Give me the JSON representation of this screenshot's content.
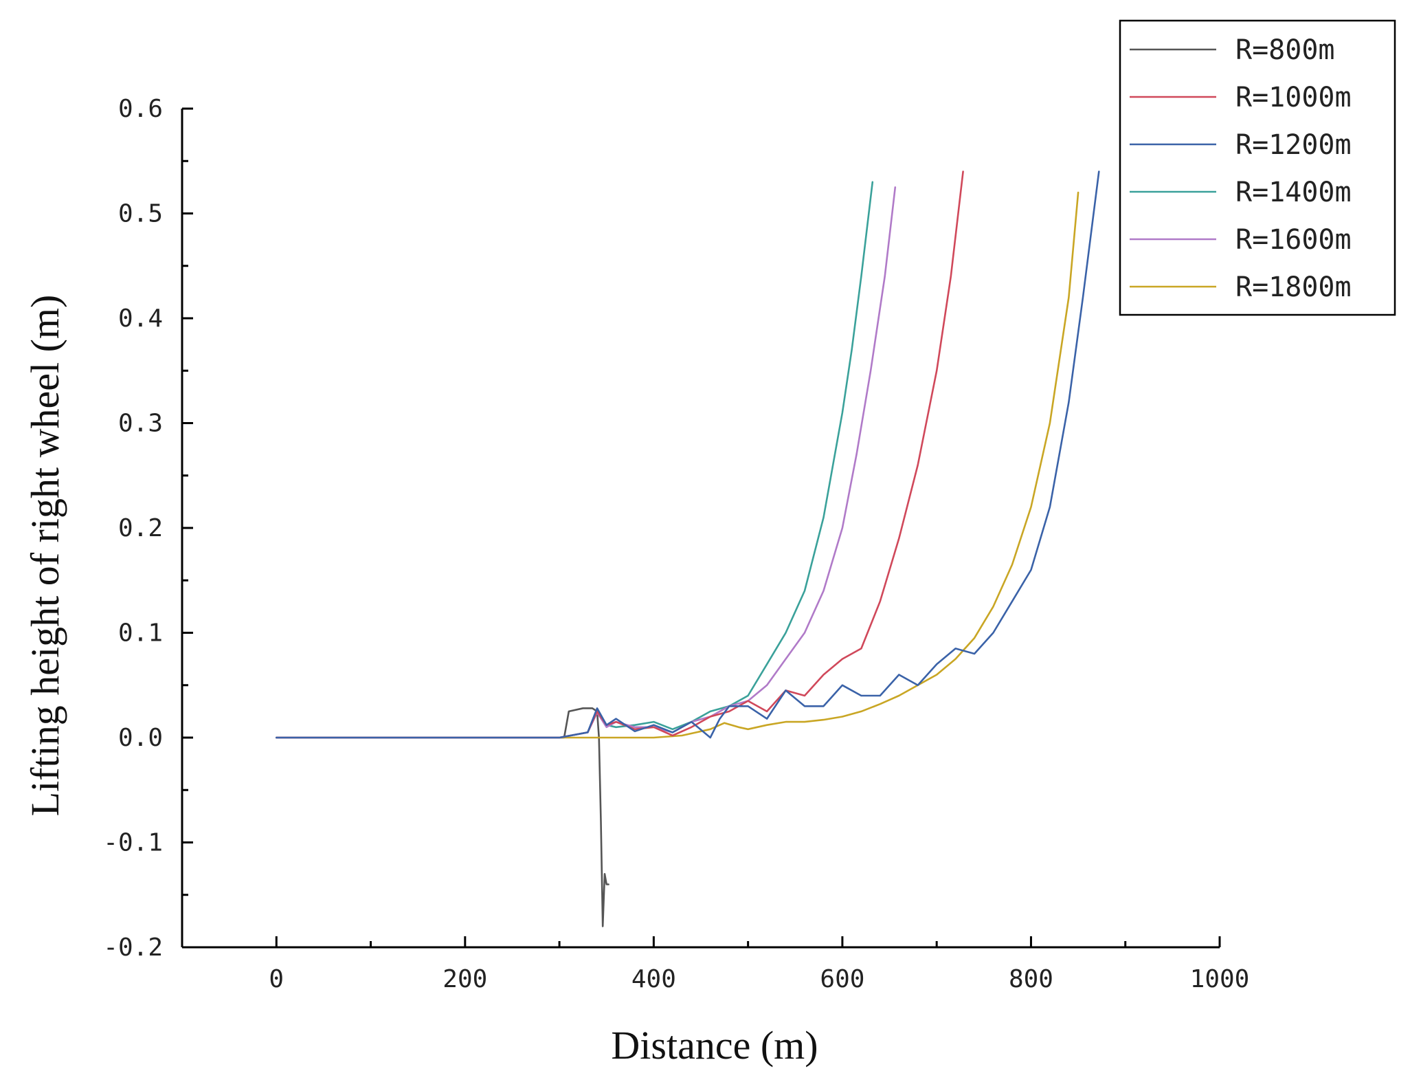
{
  "chart_data": {
    "type": "line",
    "xlabel": "Distance (m)",
    "ylabel": "Lifting height of right wheel (m)",
    "xlim": [
      -100,
      1000
    ],
    "ylim": [
      -0.2,
      0.6
    ],
    "xticks": [
      0,
      200,
      400,
      600,
      800,
      1000
    ],
    "xtick_labels": [
      "0",
      "200",
      "400",
      "600",
      "800",
      "1000"
    ],
    "yticks": [
      -0.2,
      -0.1,
      0.0,
      0.1,
      0.2,
      0.3,
      0.4,
      0.5,
      0.6
    ],
    "ytick_labels": [
      "-0.2",
      "-0.1",
      "0.0",
      "0.1",
      "0.2",
      "0.3",
      "0.4",
      "0.5",
      "0.6"
    ],
    "grid": false,
    "legend_position": "top-right",
    "series": [
      {
        "name": "R=800m",
        "color": "#555555",
        "x": [
          0,
          270,
          305,
          310,
          325,
          335,
          340,
          342,
          344,
          346,
          348,
          350,
          352
        ],
        "y": [
          0,
          0,
          0,
          0.025,
          0.028,
          0.028,
          0.025,
          0.0,
          -0.08,
          -0.18,
          -0.13,
          -0.14,
          -0.14
        ]
      },
      {
        "name": "R=1000m",
        "color": "#d0485a",
        "x": [
          0,
          300,
          330,
          340,
          350,
          360,
          380,
          400,
          420,
          440,
          460,
          480,
          500,
          520,
          540,
          560,
          580,
          600,
          620,
          640,
          660,
          680,
          700,
          715,
          728
        ],
        "y": [
          0,
          0,
          0.005,
          0.025,
          0.012,
          0.015,
          0.008,
          0.01,
          0.002,
          0.01,
          0.02,
          0.025,
          0.035,
          0.025,
          0.045,
          0.04,
          0.06,
          0.075,
          0.085,
          0.13,
          0.19,
          0.26,
          0.35,
          0.44,
          0.54
        ]
      },
      {
        "name": "R=1200m",
        "color": "#3a62a8",
        "x": [
          0,
          300,
          330,
          340,
          350,
          360,
          380,
          400,
          420,
          440,
          460,
          470,
          480,
          500,
          520,
          540,
          560,
          580,
          600,
          620,
          640,
          660,
          680,
          700,
          720,
          740,
          760,
          780,
          800,
          820,
          840,
          855,
          872
        ],
        "y": [
          0,
          0,
          0.005,
          0.028,
          0.012,
          0.018,
          0.006,
          0.012,
          0.005,
          0.015,
          0.0,
          0.018,
          0.03,
          0.03,
          0.018,
          0.045,
          0.03,
          0.03,
          0.05,
          0.04,
          0.04,
          0.06,
          0.05,
          0.07,
          0.085,
          0.08,
          0.1,
          0.13,
          0.16,
          0.22,
          0.32,
          0.42,
          0.54
        ]
      },
      {
        "name": "R=1400m",
        "color": "#3aa19a",
        "x": [
          0,
          300,
          330,
          340,
          350,
          360,
          380,
          400,
          420,
          440,
          460,
          480,
          500,
          520,
          540,
          560,
          580,
          590,
          600,
          610,
          620,
          632
        ],
        "y": [
          0,
          0,
          0.005,
          0.026,
          0.012,
          0.01,
          0.012,
          0.015,
          0.008,
          0.015,
          0.025,
          0.03,
          0.04,
          0.07,
          0.1,
          0.14,
          0.21,
          0.26,
          0.31,
          0.37,
          0.44,
          0.53
        ]
      },
      {
        "name": "R=1600m",
        "color": "#b07ac8",
        "x": [
          0,
          300,
          330,
          340,
          350,
          360,
          380,
          400,
          420,
          440,
          460,
          480,
          500,
          520,
          540,
          560,
          580,
          600,
          615,
          630,
          645,
          656
        ],
        "y": [
          0,
          0,
          0.005,
          0.024,
          0.01,
          0.015,
          0.01,
          0.01,
          0.005,
          0.015,
          0.02,
          0.03,
          0.035,
          0.05,
          0.075,
          0.1,
          0.14,
          0.2,
          0.27,
          0.35,
          0.44,
          0.525
        ]
      },
      {
        "name": "R=1800m",
        "color": "#c9a624",
        "x": [
          0,
          300,
          350,
          400,
          430,
          460,
          475,
          490,
          500,
          520,
          540,
          560,
          580,
          600,
          620,
          640,
          660,
          680,
          700,
          720,
          740,
          760,
          780,
          800,
          820,
          840,
          850
        ],
        "y": [
          0,
          0,
          0,
          0.0,
          0.002,
          0.008,
          0.014,
          0.01,
          0.008,
          0.012,
          0.015,
          0.015,
          0.017,
          0.02,
          0.025,
          0.032,
          0.04,
          0.05,
          0.06,
          0.075,
          0.095,
          0.125,
          0.165,
          0.22,
          0.3,
          0.42,
          0.52
        ]
      }
    ]
  }
}
